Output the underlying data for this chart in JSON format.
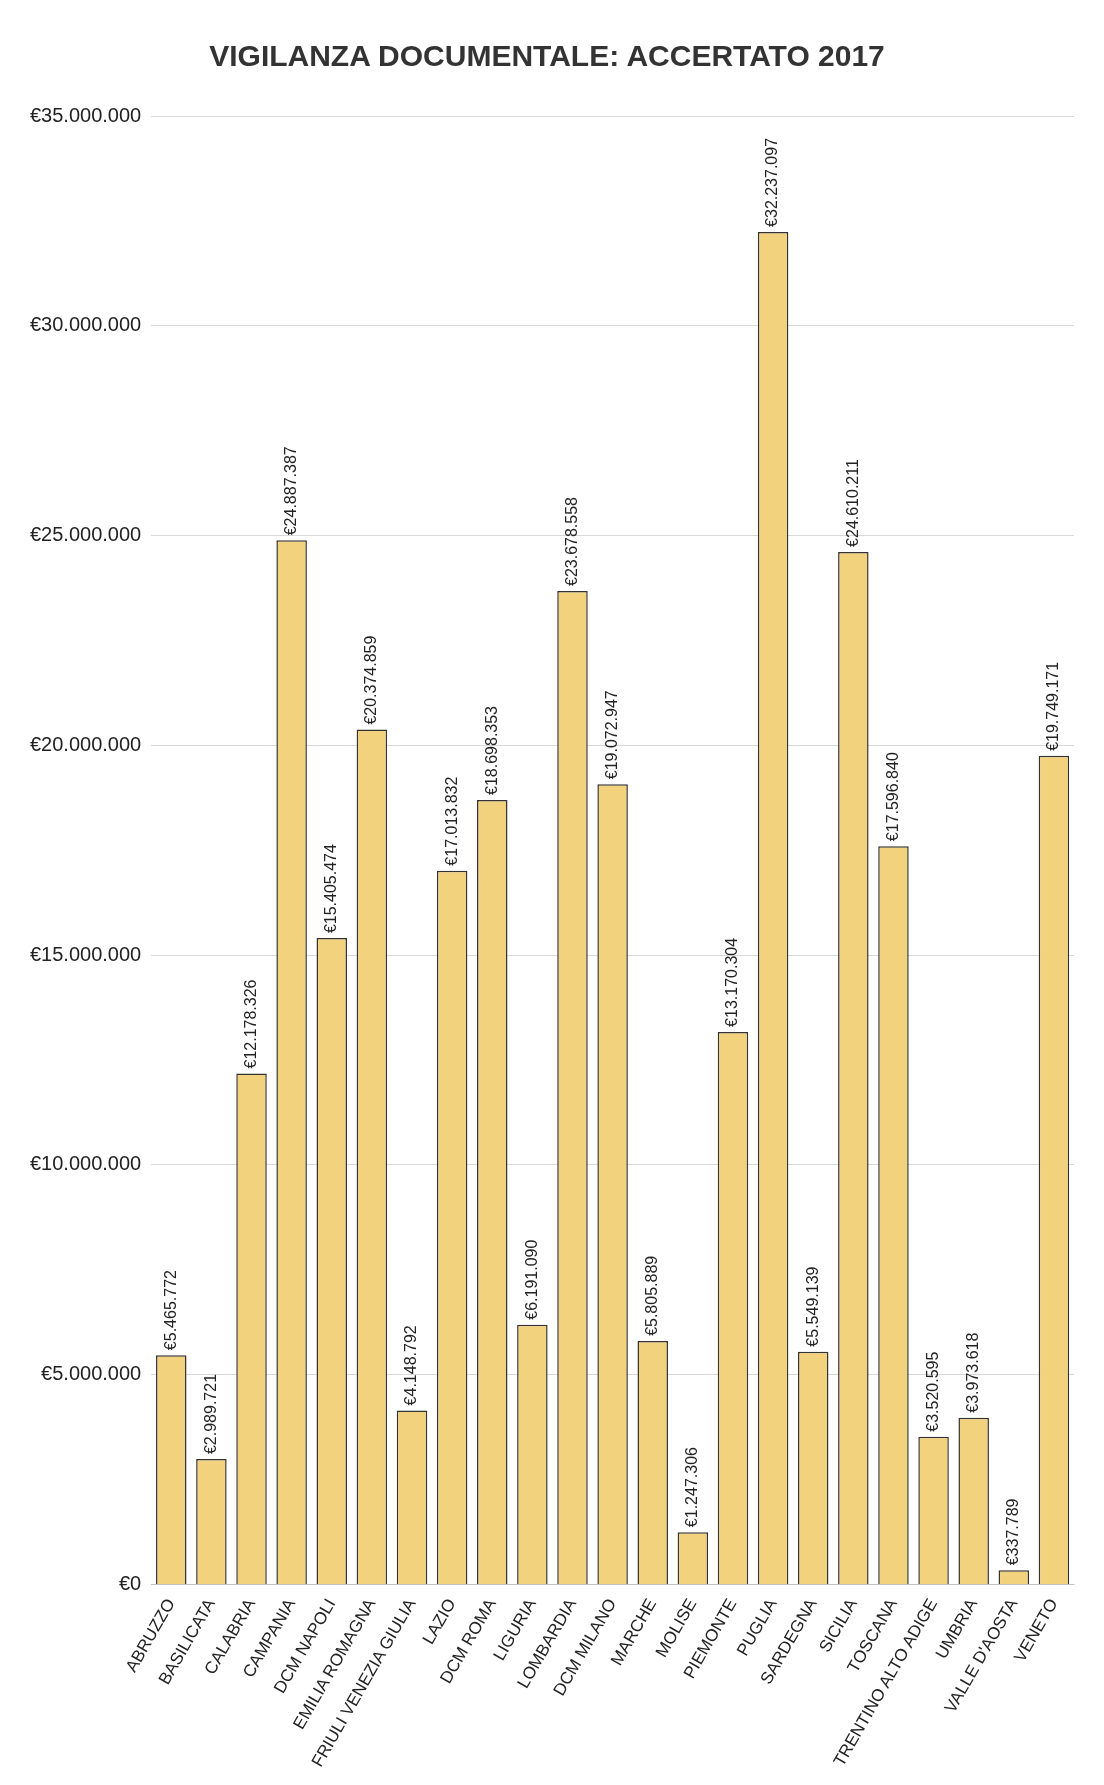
{
  "chart_data": {
    "type": "bar",
    "title": "VIGILANZA DOCUMENTALE: ACCERTATO 2017",
    "categories": [
      "ABRUZZO",
      "BASILICATA",
      "CALABRIA",
      "CAMPANIA",
      "DCM NAPOLI",
      "EMILIA ROMAGNA",
      "FRIULI VENEZIA GIULIA",
      "LAZIO",
      "DCM ROMA",
      "LIGURIA",
      "LOMBARDIA",
      "DCM MILANO",
      "MARCHE",
      "MOLISE",
      "PIEMONTE",
      "PUGLIA",
      "SARDEGNA",
      "SICILIA",
      "TOSCANA",
      "TRENTINO ALTO ADIGE",
      "UMBRIA",
      "VALLE D'AOSTA",
      "VENETO"
    ],
    "values": [
      5465772,
      2989721,
      12178326,
      24887387,
      15405474,
      20374859,
      4148792,
      17013832,
      18698353,
      6191090,
      23678558,
      19072947,
      5805889,
      1247306,
      13170304,
      32237097,
      5549139,
      24610211,
      17596840,
      3520595,
      3973618,
      337789,
      19749171
    ],
    "value_labels": [
      "€5.465.772",
      "€2.989.721",
      "€12.178.326",
      "€24.887.387",
      "€15.405.474",
      "€20.374.859",
      "€4.148.792",
      "€17.013.832",
      "€18.698.353",
      "€6.191.090",
      "€23.678.558",
      "€19.072.947",
      "€5.805.889",
      "€1.247.306",
      "€13.170.304",
      "€32.237.097",
      "€5.549.139",
      "€24.610.211",
      "€17.596.840",
      "€3.520.595",
      "€3.973.618",
      "€337.789",
      "€19.749.171"
    ],
    "color": "#f3d27e",
    "ylim": [
      0,
      35000000
    ],
    "yticks": [
      {
        "value": 0,
        "label": "€0"
      },
      {
        "value": 5000000,
        "label": "€5.000.000"
      },
      {
        "value": 10000000,
        "label": "€10.000.000"
      },
      {
        "value": 15000000,
        "label": "€15.000.000"
      },
      {
        "value": 20000000,
        "label": "€20.000.000"
      },
      {
        "value": 25000000,
        "label": "€25.000.000"
      },
      {
        "value": 30000000,
        "label": "€30.000.000"
      },
      {
        "value": 35000000,
        "label": "€35.000.000"
      }
    ],
    "grid": "y",
    "legend": false
  }
}
